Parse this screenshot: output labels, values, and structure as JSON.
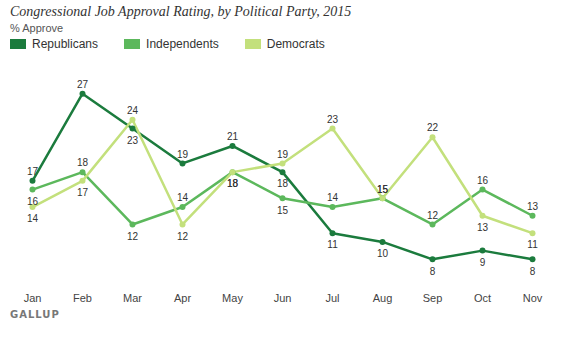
{
  "chart_data": {
    "type": "line",
    "title": "Congressional Job Approval Rating, by Political Party, 2015",
    "subtitle": "% Approve",
    "caption": "GALLUP",
    "categories": [
      "Jan",
      "Feb",
      "Mar",
      "Apr",
      "May",
      "Jun",
      "Jul",
      "Aug",
      "Sep",
      "Oct",
      "Nov"
    ],
    "series": [
      {
        "name": "Republicans",
        "color": "#1b7b3d",
        "marker": "circle",
        "values": [
          17,
          27,
          23,
          19,
          21,
          18,
          11,
          10,
          8,
          9,
          8
        ]
      },
      {
        "name": "Independents",
        "color": "#5cb85c",
        "marker": "circle",
        "values": [
          16,
          18,
          12,
          14,
          18,
          15,
          14,
          15,
          12,
          16,
          13
        ]
      },
      {
        "name": "Democrats",
        "color": "#c3e07c",
        "marker": "circle",
        "values": [
          14,
          17,
          24,
          12,
          18,
          19,
          23,
          15,
          22,
          13,
          11
        ]
      }
    ],
    "ylim": [
      5,
      30
    ],
    "data_labels": true,
    "tick_labels": "x",
    "legend": "top-left",
    "grid": false
  }
}
